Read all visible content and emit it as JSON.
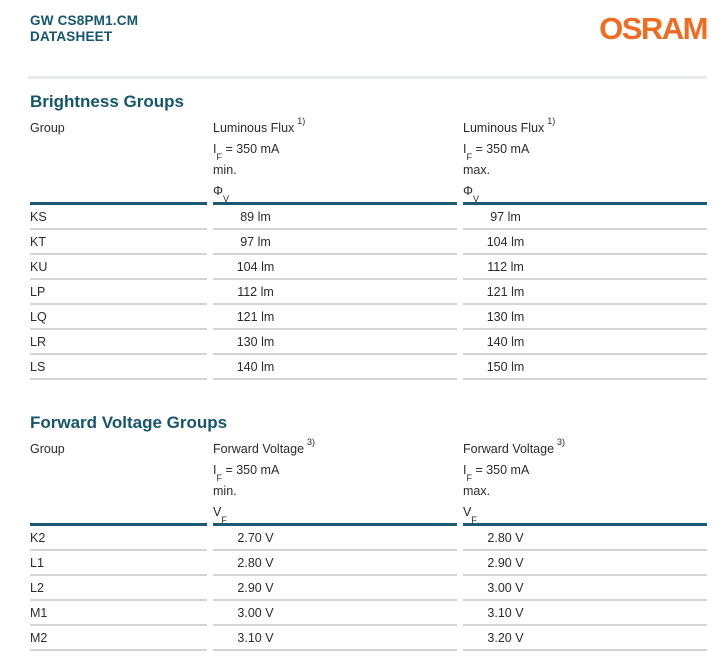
{
  "header": {
    "product_name": "GW CS8PM1.CM",
    "doc_label": "DATASHEET",
    "brand": "OSRAM"
  },
  "colors": {
    "teal": "#15566e",
    "orange": "#f06c23",
    "table_header_border": "#1d5a73",
    "row_border": "#d2d4d5",
    "divider": "#e6ebef",
    "body_text": "#2b2b2b"
  },
  "brightness_groups": {
    "title": "Brightness Groups",
    "group_header": "Group",
    "min_col": {
      "name": "Luminous Flux",
      "footnote": "1)",
      "cond_base": "I",
      "cond_sub": "F",
      "cond_rest": " = 350 mA",
      "bound": "min.",
      "sym_base": "Φ",
      "sym_sub": "V"
    },
    "max_col": {
      "name": "Luminous Flux",
      "footnote": "1)",
      "cond_base": "I",
      "cond_sub": "F",
      "cond_rest": " = 350 mA",
      "bound": "max.",
      "sym_base": "Φ",
      "sym_sub": "V"
    },
    "rows": [
      {
        "group": "KS",
        "min": "89 lm",
        "max": "97 lm"
      },
      {
        "group": "KT",
        "min": "97 lm",
        "max": "104 lm"
      },
      {
        "group": "KU",
        "min": "104 lm",
        "max": "112 lm"
      },
      {
        "group": "LP",
        "min": "112 lm",
        "max": "121 lm"
      },
      {
        "group": "LQ",
        "min": "121 lm",
        "max": "130 lm"
      },
      {
        "group": "LR",
        "min": "130 lm",
        "max": "140 lm"
      },
      {
        "group": "LS",
        "min": "140 lm",
        "max": "150 lm"
      }
    ]
  },
  "forward_voltage_groups": {
    "title": "Forward Voltage Groups",
    "group_header": "Group",
    "min_col": {
      "name": "Forward Voltage",
      "footnote": "3)",
      "cond_base": "I",
      "cond_sub": "F",
      "cond_rest": " = 350 mA",
      "bound": "min.",
      "sym_base": "V",
      "sym_sub": "F"
    },
    "max_col": {
      "name": "Forward Voltage",
      "footnote": "3)",
      "cond_base": "I",
      "cond_sub": "F",
      "cond_rest": " = 350 mA",
      "bound": "max.",
      "sym_base": "V",
      "sym_sub": "F"
    },
    "rows": [
      {
        "group": "K2",
        "min": "2.70 V",
        "max": "2.80 V"
      },
      {
        "group": "L1",
        "min": "2.80 V",
        "max": "2.90 V"
      },
      {
        "group": "L2",
        "min": "2.90 V",
        "max": "3.00 V"
      },
      {
        "group": "M1",
        "min": "3.00 V",
        "max": "3.10 V"
      },
      {
        "group": "M2",
        "min": "3.10 V",
        "max": "3.20 V"
      }
    ]
  }
}
